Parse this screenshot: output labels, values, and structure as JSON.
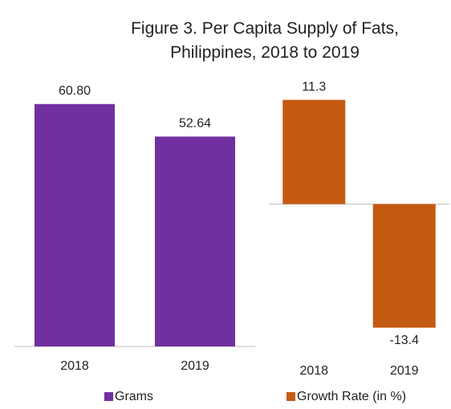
{
  "title": "Figure 3. Per Capita Supply of Fats, Philippines, 2018 to 2019",
  "chart_data": [
    {
      "type": "bar",
      "categories": [
        "2018",
        "2019"
      ],
      "series": [
        {
          "name": "Grams",
          "color": "#7030a0",
          "values": [
            60.8,
            52.64
          ],
          "value_labels": [
            "60.80",
            "52.64"
          ]
        }
      ],
      "ylim": [
        0,
        70
      ]
    },
    {
      "type": "bar",
      "categories": [
        "2018",
        "2019"
      ],
      "series": [
        {
          "name": "Growth Rate (in %)",
          "color": "#c55a11",
          "values": [
            11.3,
            -13.4
          ]
        }
      ],
      "ylim": [
        -15,
        15
      ]
    }
  ]
}
